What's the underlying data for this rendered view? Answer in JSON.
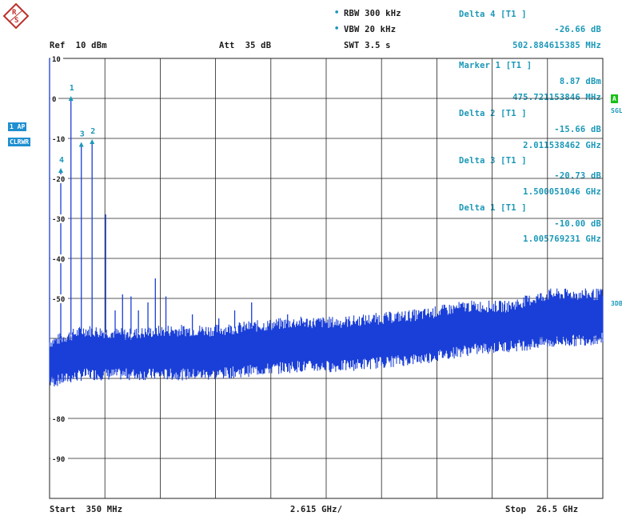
{
  "header": {
    "rbw": "RBW 300 kHz",
    "vbw": "VBW 20 kHz",
    "swt": "SWT 3.5 s",
    "ref": "Ref  10 dBm",
    "att": "Att  35 dB"
  },
  "side_labels": {
    "trace_mode": "1 AP",
    "trace_clrwr": "CLRWR",
    "edge_a": "A",
    "edge_sgl": "SGL",
    "edge_3db": "3DB"
  },
  "marker_readouts": [
    {
      "title": "Delta 4 [T1 ]",
      "value": "-26.66 dB",
      "freq": "502.884615385 MHz"
    },
    {
      "title": "Marker 1 [T1 ]",
      "value": "8.87 dBm",
      "freq": "475.721153846 MHz"
    },
    {
      "title": "Delta 2 [T1 ]",
      "value": "-15.66 dB",
      "freq": "2.011538462 GHz"
    },
    {
      "title": "Delta 3 [T1 ]",
      "value": "-20.73 dB",
      "freq": "1.500051046 GHz"
    },
    {
      "title": "Delta 1 [T1 ]",
      "value": "-10.00 dB",
      "freq": "1.005769231 GHz"
    }
  ],
  "footer": {
    "start": "Start  350 MHz",
    "div": "2.615 GHz/",
    "stop": "Stop  26.5 GHz"
  },
  "chart_data": {
    "type": "line",
    "title": "",
    "xlabel": "",
    "ylabel": "",
    "xlim_ghz": [
      0.35,
      26.5
    ],
    "ylim_dbm": [
      -100,
      10
    ],
    "grid": true,
    "y_tick_labels": [
      "10",
      "0",
      "-10",
      "-20",
      "-30",
      "-40",
      "-50",
      "-80",
      "-90"
    ],
    "trace_color": "#1a3fd8",
    "marker_color": "#1b98b8",
    "noise_floor": {
      "x_ghz": [
        0.35,
        2.0,
        4.0,
        6.0,
        8.0,
        10.0,
        12.0,
        14.0,
        16.0,
        18.0,
        20.0,
        22.0,
        24.0,
        26.5
      ],
      "upper_dbm": [
        -61,
        -58,
        -59,
        -58,
        -58,
        -57,
        -56,
        -56,
        -55,
        -54,
        -52,
        -52,
        -49,
        -49
      ],
      "lower_dbm": [
        -71,
        -69,
        -69,
        -69,
        -69,
        -68,
        -67,
        -67,
        -66,
        -65,
        -63,
        -62,
        -61,
        -60
      ]
    },
    "spurs": [
      {
        "x_ghz": 0.35,
        "peak_dbm": 10.0
      },
      {
        "x_ghz": 0.88,
        "peak_dbm": -18.0
      },
      {
        "x_ghz": 1.36,
        "peak_dbm": 0.0
      },
      {
        "x_ghz": 1.85,
        "peak_dbm": -11.5
      },
      {
        "x_ghz": 2.36,
        "peak_dbm": -10.8
      },
      {
        "x_ghz": 3.0,
        "peak_dbm": -29.0
      },
      {
        "x_ghz": 3.45,
        "peak_dbm": -53.0
      },
      {
        "x_ghz": 3.8,
        "peak_dbm": -49.0
      },
      {
        "x_ghz": 4.2,
        "peak_dbm": -49.5
      },
      {
        "x_ghz": 4.55,
        "peak_dbm": -53.0
      },
      {
        "x_ghz": 5.0,
        "peak_dbm": -51.0
      },
      {
        "x_ghz": 5.35,
        "peak_dbm": -45.0
      },
      {
        "x_ghz": 5.85,
        "peak_dbm": -49.5
      },
      {
        "x_ghz": 7.1,
        "peak_dbm": -54.0
      },
      {
        "x_ghz": 8.35,
        "peak_dbm": -55.0
      },
      {
        "x_ghz": 9.1,
        "peak_dbm": -53.0
      },
      {
        "x_ghz": 9.9,
        "peak_dbm": -51.0
      },
      {
        "x_ghz": 10.8,
        "peak_dbm": -56.5
      },
      {
        "x_ghz": 11.6,
        "peak_dbm": -54.0
      },
      {
        "x_ghz": 12.4,
        "peak_dbm": -56.5
      }
    ],
    "markers": [
      {
        "label": "1",
        "x_ghz": 1.36,
        "y_dbm": 0.0
      },
      {
        "label": "2",
        "x_ghz": 2.36,
        "y_dbm": -10.8
      },
      {
        "label": "3",
        "x_ghz": 1.85,
        "y_dbm": -11.5
      },
      {
        "label": "4",
        "x_ghz": 0.88,
        "y_dbm": -18.0
      }
    ]
  }
}
